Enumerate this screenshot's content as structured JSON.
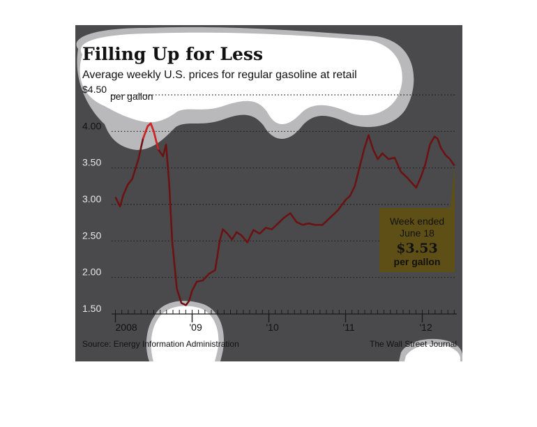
{
  "chart_data": {
    "type": "line",
    "title": "Filling Up for Less",
    "subtitle": "Average weekly U.S. prices for regular gasoline at retail",
    "unit_label": "per gallon",
    "y_tick_labels": [
      "$4.50",
      "4.00",
      "3.50",
      "3.00",
      "2.50",
      "2.00",
      "1.50"
    ],
    "y_ticks": [
      4.5,
      4.0,
      3.5,
      3.0,
      2.5,
      2.0,
      1.5
    ],
    "ylim": [
      1.5,
      4.5
    ],
    "x_tick_labels": [
      "2008",
      "'09",
      "'10",
      "'11",
      "'12"
    ],
    "x_ticks": [
      2008.0,
      2009.0,
      2010.0,
      2011.0,
      2012.0
    ],
    "xlim": [
      2007.95,
      2012.45
    ],
    "grid": true,
    "series": [
      {
        "color": "#6b1212",
        "x": [
          2008.0,
          2008.06,
          2008.1,
          2008.16,
          2008.22,
          2008.3,
          2008.36,
          2008.42,
          2008.46,
          2008.5,
          2008.56,
          2008.62,
          2008.66,
          2008.7,
          2008.74,
          2008.8,
          2008.86,
          2008.92,
          2008.96,
          2009.0,
          2009.06,
          2009.14,
          2009.22,
          2009.3,
          2009.36,
          2009.4,
          2009.46,
          2009.52,
          2009.58,
          2009.64,
          2009.72,
          2009.8,
          2009.88,
          2009.96,
          2010.04,
          2010.12,
          2010.2,
          2010.28,
          2010.36,
          2010.44,
          2010.52,
          2010.6,
          2010.7,
          2010.8,
          2010.9,
          2011.0,
          2011.06,
          2011.12,
          2011.18,
          2011.24,
          2011.3,
          2011.36,
          2011.42,
          2011.48,
          2011.56,
          2011.64,
          2011.72,
          2011.8,
          2011.86,
          2011.92,
          2011.98,
          2012.04,
          2012.1,
          2012.16,
          2012.2,
          2012.24,
          2012.3,
          2012.36,
          2012.42
        ],
        "y": [
          3.1,
          2.97,
          3.12,
          3.27,
          3.35,
          3.62,
          3.9,
          4.07,
          4.11,
          4.0,
          3.75,
          3.66,
          3.82,
          3.3,
          2.5,
          1.85,
          1.65,
          1.62,
          1.68,
          1.82,
          1.94,
          1.96,
          2.05,
          2.1,
          2.5,
          2.66,
          2.6,
          2.52,
          2.62,
          2.58,
          2.48,
          2.65,
          2.6,
          2.68,
          2.66,
          2.74,
          2.82,
          2.88,
          2.76,
          2.72,
          2.74,
          2.72,
          2.72,
          2.82,
          2.92,
          3.06,
          3.12,
          3.25,
          3.5,
          3.75,
          3.95,
          3.75,
          3.62,
          3.7,
          3.62,
          3.64,
          3.45,
          3.37,
          3.3,
          3.23,
          3.37,
          3.55,
          3.82,
          3.93,
          3.9,
          3.78,
          3.68,
          3.62,
          3.53
        ]
      }
    ],
    "annotations": [
      {
        "line1": "Week ended",
        "line2": "June 18",
        "value": "$3.53",
        "line3": "per gallon"
      }
    ]
  },
  "source": "Source: Energy Information Administration",
  "credit": "The Wall Street Journal",
  "colors": {
    "background": "#4a4a4d",
    "line": "#6b1212",
    "line_highlight": "#e02020",
    "callout_fill": "#5e4f16",
    "grid": "#1a1a1a"
  }
}
